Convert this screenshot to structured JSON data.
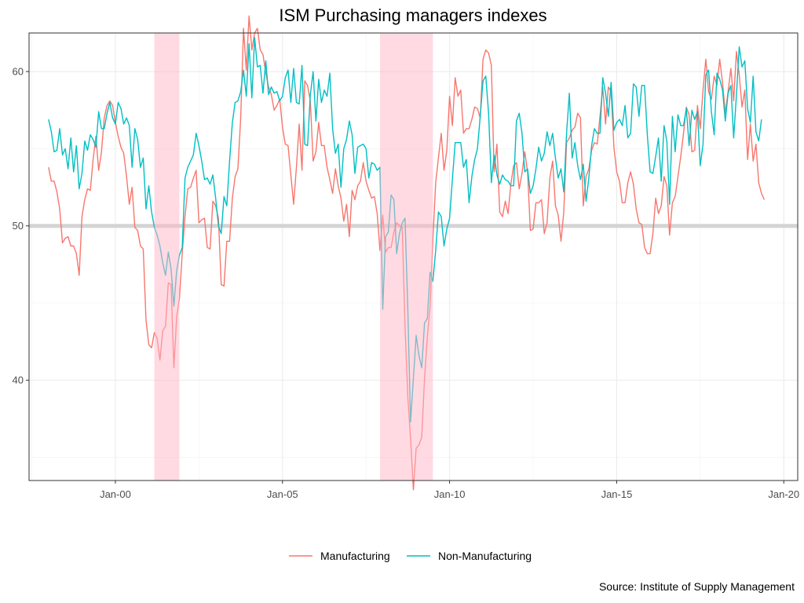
{
  "chart_data": {
    "type": "line",
    "title": "ISM Purchasing managers indexes",
    "xlabel": "",
    "ylabel": "",
    "caption": "Source: Institute of Supply Management",
    "x_start": "1998-01",
    "frequency": "monthly",
    "xlim": [
      "1997-06",
      "2020-06"
    ],
    "ylim": [
      33.5,
      62.5
    ],
    "x_ticks": [
      {
        "label": "Jan-00",
        "date": "2000-01"
      },
      {
        "label": "Jan-05",
        "date": "2005-01"
      },
      {
        "label": "Jan-10",
        "date": "2010-01"
      },
      {
        "label": "Jan-15",
        "date": "2015-01"
      },
      {
        "label": "Jan-20",
        "date": "2020-01"
      }
    ],
    "y_ticks": [
      40,
      50,
      60
    ],
    "grid": true,
    "legend_position": "bottom",
    "reference_line": 50,
    "shaded_periods": [
      {
        "start": "2001-03",
        "end": "2001-11"
      },
      {
        "start": "2007-12",
        "end": "2009-06"
      }
    ],
    "series": [
      {
        "name": "Manufacturing",
        "color": "#F8766D",
        "values": [
          53.8,
          52.9,
          52.9,
          52.2,
          51.1,
          48.9,
          49.2,
          49.3,
          48.7,
          48.7,
          48.2,
          46.8,
          50.6,
          51.7,
          52.4,
          52.3,
          54.3,
          55.8,
          53.6,
          54.8,
          57.0,
          57.8,
          58.1,
          57.8,
          56.7,
          55.8,
          55.1,
          54.7,
          53.2,
          51.4,
          52.5,
          49.9,
          49.7,
          48.7,
          48.5,
          43.9,
          42.3,
          42.1,
          43.1,
          42.7,
          41.3,
          43.2,
          43.5,
          46.3,
          46.2,
          40.8,
          44.1,
          45.3,
          48.2,
          50.6,
          52.4,
          52.5,
          53.1,
          53.6,
          50.2,
          50.4,
          50.5,
          48.6,
          48.5,
          51.6,
          51.3,
          50.5,
          46.2,
          46.1,
          49.0,
          49.0,
          51.8,
          53.2,
          53.7,
          57.0,
          62.8,
          60.1,
          63.6,
          61.4,
          62.5,
          62.8,
          61.4,
          61.1,
          59.9,
          59.0,
          58.5,
          57.5,
          57.8,
          58.2,
          56.4,
          55.3,
          55.2,
          53.3,
          51.4,
          53.8,
          56.6,
          53.6,
          59.4,
          59.1,
          58.1,
          54.2,
          54.8,
          56.7,
          55.2,
          55.2,
          53.8,
          53.0,
          52.1,
          53.7,
          52.6,
          51.8,
          50.3,
          51.4,
          49.3,
          52.3,
          51.7,
          52.6,
          52.9,
          54.1,
          52.9,
          52.3,
          51.8,
          51.9,
          50.8,
          48.4,
          50.7,
          48.3,
          48.6,
          48.6,
          49.6,
          50.2,
          50.0,
          49.9,
          43.5,
          38.9,
          36.2,
          32.9,
          35.6,
          35.8,
          36.3,
          40.1,
          42.8,
          44.8,
          49.1,
          52.8,
          54.4,
          56.0,
          53.6,
          54.9,
          58.4,
          56.5,
          59.6,
          58.4,
          58.8,
          56.0,
          56.3,
          56.3,
          56.9,
          57.7,
          57.6,
          57.0,
          60.8,
          61.4,
          61.2,
          60.4,
          53.5,
          55.3,
          50.9,
          50.6,
          51.6,
          50.8,
          52.7,
          53.9,
          54.1,
          52.4,
          53.4,
          54.8,
          53.5,
          49.7,
          49.8,
          51.5,
          51.5,
          51.7,
          49.5,
          50.2,
          53.1,
          54.2,
          51.3,
          50.7,
          49.0,
          50.9,
          55.4,
          55.7,
          56.2,
          56.4,
          57.3,
          57.0,
          51.3,
          53.2,
          53.7,
          54.9,
          55.4,
          55.3,
          57.1,
          59.0,
          56.6,
          59.0,
          58.7,
          55.1,
          53.5,
          52.9,
          51.5,
          51.5,
          52.8,
          53.5,
          52.7,
          51.1,
          50.2,
          50.1,
          48.6,
          48.2,
          48.2,
          49.5,
          51.8,
          50.8,
          51.3,
          53.2,
          52.6,
          49.4,
          51.5,
          51.9,
          53.2,
          54.5,
          56.0,
          57.7,
          57.2,
          54.8,
          54.9,
          57.8,
          56.3,
          58.8,
          60.8,
          58.7,
          58.2,
          59.7,
          59.1,
          60.8,
          59.3,
          57.3,
          58.7,
          60.2,
          58.1,
          61.3,
          59.8,
          57.7,
          58.8,
          54.3,
          56.6,
          54.2,
          55.3,
          52.8,
          52.1,
          51.7
        ]
      },
      {
        "name": "Non-Manufacturing",
        "color": "#00BFC4",
        "values": [
          56.9,
          56.1,
          54.8,
          54.9,
          56.3,
          54.6,
          55.0,
          53.7,
          55.7,
          53.5,
          55.2,
          52.4,
          53.4,
          55.5,
          54.9,
          55.9,
          55.6,
          55.1,
          57.4,
          56.3,
          56.3,
          57.3,
          58.0,
          57.0,
          56.6,
          58.0,
          57.6,
          56.6,
          57.0,
          56.5,
          53.8,
          56.3,
          55.6,
          53.8,
          54.4,
          51.1,
          52.6,
          50.9,
          49.9,
          49.4,
          48.7,
          47.6,
          46.8,
          48.3,
          47.2,
          44.8,
          47.1,
          48.1,
          48.6,
          53.1,
          53.8,
          54.2,
          54.6,
          56.0,
          55.2,
          54.2,
          53.0,
          53.1,
          52.7,
          53.3,
          51.8,
          50.0,
          49.5,
          51.9,
          51.3,
          54.2,
          56.7,
          58.0,
          58.1,
          58.7,
          60.1,
          58.4,
          61.8,
          58.3,
          62.2,
          60.3,
          60.4,
          58.6,
          60.7,
          58.5,
          59.0,
          58.6,
          58.7,
          58.1,
          58.4,
          59.6,
          60.1,
          58.0,
          60.2,
          58.0,
          57.9,
          60.4,
          55.3,
          55.2,
          58.5,
          60.0,
          56.8,
          59.5,
          58.0,
          58.8,
          58.4,
          59.9,
          56.3,
          54.7,
          55.3,
          52.5,
          55.0,
          55.6,
          56.8,
          55.9,
          53.4,
          55.1,
          55.2,
          55.3,
          55.0,
          53.1,
          54.1,
          54.0,
          53.6,
          53.8,
          44.6,
          49.3,
          49.6,
          52.0,
          51.7,
          48.2,
          49.5,
          50.2,
          50.5,
          44.6,
          37.3,
          40.1,
          42.9,
          41.6,
          40.8,
          43.7,
          44.0,
          47.0,
          46.4,
          48.4,
          50.9,
          50.6,
          48.7,
          49.8,
          50.5,
          53.0,
          55.4,
          55.4,
          55.4,
          53.8,
          54.3,
          51.5,
          53.2,
          54.3,
          55.0,
          57.1,
          59.4,
          59.7,
          57.3,
          52.8,
          54.6,
          53.3,
          52.7,
          53.3,
          53.0,
          52.9,
          52.6,
          52.6,
          56.8,
          57.3,
          56.0,
          53.5,
          53.7,
          52.1,
          52.6,
          53.7,
          55.1,
          54.2,
          54.7,
          56.1,
          55.2,
          56.0,
          54.4,
          53.1,
          53.7,
          52.2,
          56.0,
          58.6,
          54.4,
          55.4,
          53.9,
          53.0,
          54.0,
          51.6,
          53.1,
          55.2,
          56.3,
          56.0,
          56.0,
          59.6,
          58.6,
          57.1,
          59.3,
          56.2,
          56.7,
          56.9,
          56.5,
          57.8,
          55.7,
          56.0,
          59.2,
          59.0,
          57.1,
          59.1,
          59.1,
          55.9,
          53.5,
          53.4,
          54.5,
          55.7,
          52.9,
          56.5,
          55.5,
          51.4,
          57.1,
          54.8,
          57.2,
          56.5,
          56.5,
          57.6,
          55.2,
          57.5,
          56.9,
          57.4,
          53.9,
          55.3,
          59.8,
          60.1,
          57.4,
          55.9,
          59.9,
          59.5,
          58.8,
          56.8,
          58.6,
          59.1,
          55.7,
          58.5,
          61.6,
          60.3,
          60.7,
          57.6,
          56.7,
          59.7,
          56.1,
          55.5,
          56.9
        ]
      }
    ]
  }
}
